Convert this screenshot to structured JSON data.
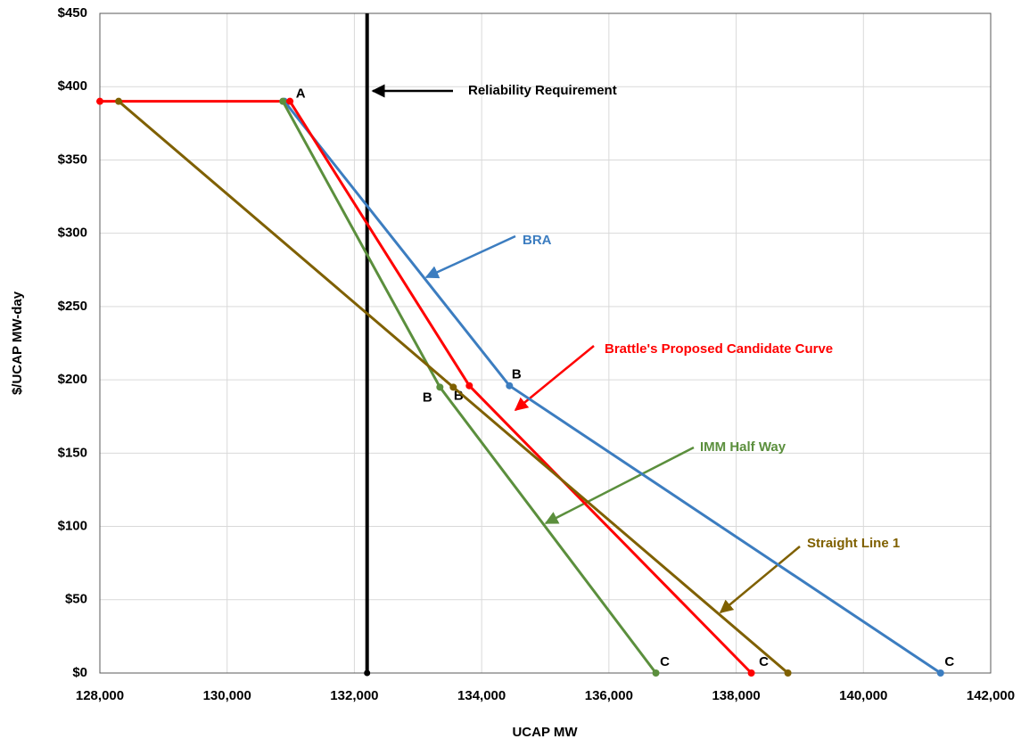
{
  "chart_data": {
    "type": "line",
    "x_label": "UCAP MW",
    "y_label": "$/UCAP MW-day",
    "xlim": [
      128000,
      142000
    ],
    "xticks": [
      {
        "value": 128000,
        "label": "128,000"
      },
      {
        "value": 130000,
        "label": "130,000"
      },
      {
        "value": 132000,
        "label": "132,000"
      },
      {
        "value": 134000,
        "label": "134,000"
      },
      {
        "value": 136000,
        "label": "136,000"
      },
      {
        "value": 138000,
        "label": "138,000"
      },
      {
        "value": 140000,
        "label": "140,000"
      },
      {
        "value": 142000,
        "label": "142,000"
      }
    ],
    "ylim": [
      0,
      450
    ],
    "yticks": [
      {
        "value": 0,
        "label": "$0"
      },
      {
        "value": 50,
        "label": "$50"
      },
      {
        "value": 100,
        "label": "$100"
      },
      {
        "value": 150,
        "label": "$150"
      },
      {
        "value": 200,
        "label": "$200"
      },
      {
        "value": 250,
        "label": "$250"
      },
      {
        "value": 300,
        "label": "$300"
      },
      {
        "value": 350,
        "label": "$350"
      },
      {
        "value": 400,
        "label": "$400"
      },
      {
        "value": 450,
        "label": "$450"
      }
    ],
    "grid": true,
    "reference_line": {
      "x": 132200,
      "label": "Reliability Requirement",
      "color": "#000000"
    },
    "series": [
      {
        "name": "BRA",
        "color": "#3c7dc0",
        "x": [
          130900,
          134437,
          141212
        ],
        "values": [
          390,
          196,
          0
        ],
        "point_labels": [
          null,
          "B",
          "C"
        ]
      },
      {
        "name": "Brattle's Proposed Candidate Curve",
        "color": "#ff0000",
        "x": [
          128000,
          130987,
          133806,
          138238
        ],
        "values": [
          390,
          390,
          196,
          0
        ],
        "point_labels": [
          null,
          "A",
          "B",
          "C"
        ]
      },
      {
        "name": "IMM Half Way",
        "color": "#5b8f3d",
        "x": [
          130875,
          133344,
          136738
        ],
        "values": [
          390,
          195,
          0
        ],
        "point_labels": [
          null,
          "B",
          "C"
        ]
      },
      {
        "name": "Straight Line 1",
        "color": "#7f6000",
        "x": [
          128295,
          133554,
          138813
        ],
        "values": [
          390,
          195,
          0
        ],
        "point_labels": [
          null,
          null,
          null
        ]
      }
    ]
  }
}
